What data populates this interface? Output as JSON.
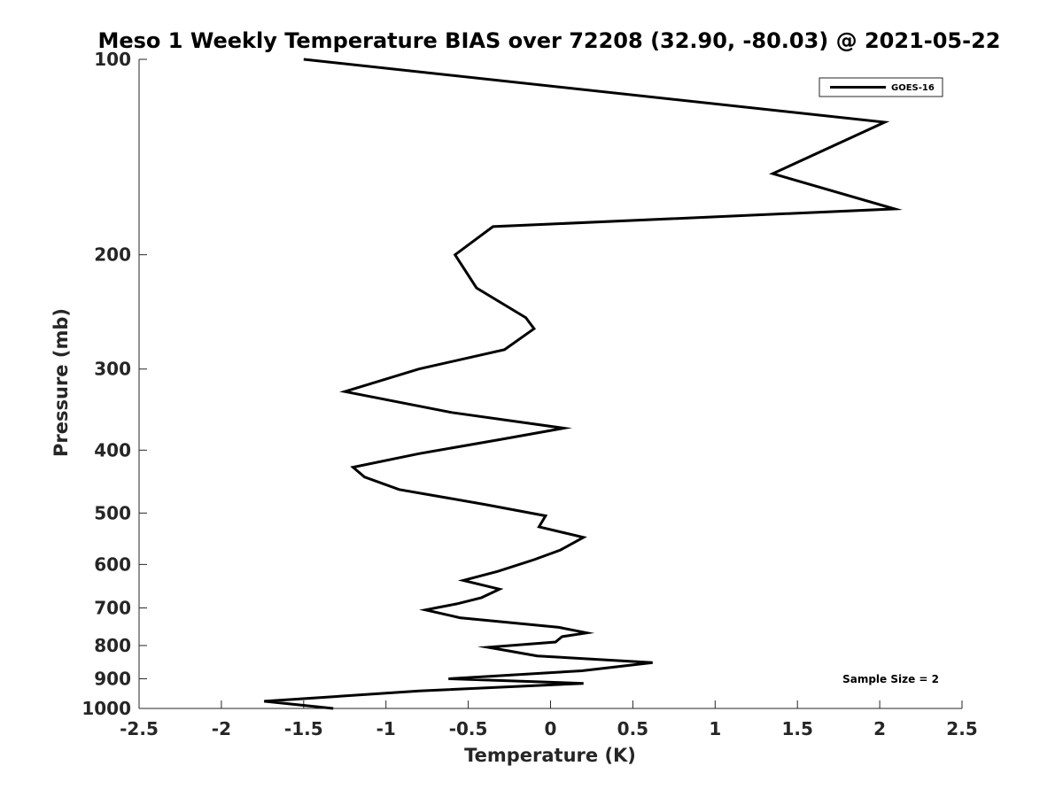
{
  "chart_data": {
    "type": "line",
    "title": "Meso 1 Weekly Temperature BIAS over 72208 (32.90, -80.03) @ 2021-05-22",
    "xlabel": "Temperature (K)",
    "ylabel": "Pressure (mb)",
    "xlim": [
      -2.5,
      2.5
    ],
    "ylim": [
      1000,
      100
    ],
    "y_scale": "log",
    "y_reversed": true,
    "grid": false,
    "x_ticks": [
      "-2.5",
      "-2",
      "-1.5",
      "-1",
      "-0.5",
      "0",
      "0.5",
      "1",
      "1.5",
      "2",
      "2.5"
    ],
    "y_ticks": [
      "100",
      "200",
      "300",
      "400",
      "500",
      "600",
      "700",
      "800",
      "900",
      "1000"
    ],
    "legend_position": "top-right",
    "series": [
      {
        "name": "GOES-16",
        "color": "#000000",
        "points": [
          [
            -1.5,
            100
          ],
          [
            2.03,
            125
          ],
          [
            1.35,
            150
          ],
          [
            2.09,
            170
          ],
          [
            -0.35,
            181
          ],
          [
            -0.58,
            200
          ],
          [
            -0.45,
            225
          ],
          [
            -0.15,
            250
          ],
          [
            -0.1,
            260
          ],
          [
            -0.28,
            280
          ],
          [
            -0.8,
            300
          ],
          [
            -1.25,
            325
          ],
          [
            -0.6,
            350
          ],
          [
            0.08,
            370
          ],
          [
            -0.3,
            385
          ],
          [
            -0.8,
            405
          ],
          [
            -1.2,
            425
          ],
          [
            -1.13,
            440
          ],
          [
            -0.92,
            460
          ],
          [
            -0.4,
            485
          ],
          [
            -0.03,
            505
          ],
          [
            -0.07,
            525
          ],
          [
            0.2,
            545
          ],
          [
            0.06,
            570
          ],
          [
            -0.1,
            590
          ],
          [
            -0.32,
            615
          ],
          [
            -0.53,
            635
          ],
          [
            -0.31,
            655
          ],
          [
            -0.42,
            675
          ],
          [
            -0.57,
            690
          ],
          [
            -0.76,
            705
          ],
          [
            -0.55,
            725
          ],
          [
            0.05,
            750
          ],
          [
            0.22,
            765
          ],
          [
            0.07,
            775
          ],
          [
            0.03,
            790
          ],
          [
            -0.38,
            805
          ],
          [
            -0.08,
            830
          ],
          [
            0.62,
            850
          ],
          [
            0.19,
            875
          ],
          [
            -0.62,
            900
          ],
          [
            0.2,
            915
          ],
          [
            -0.8,
            940
          ],
          [
            -1.74,
            975
          ],
          [
            -1.32,
            1000
          ]
        ]
      }
    ],
    "annotation": "Sample Size = 2"
  }
}
